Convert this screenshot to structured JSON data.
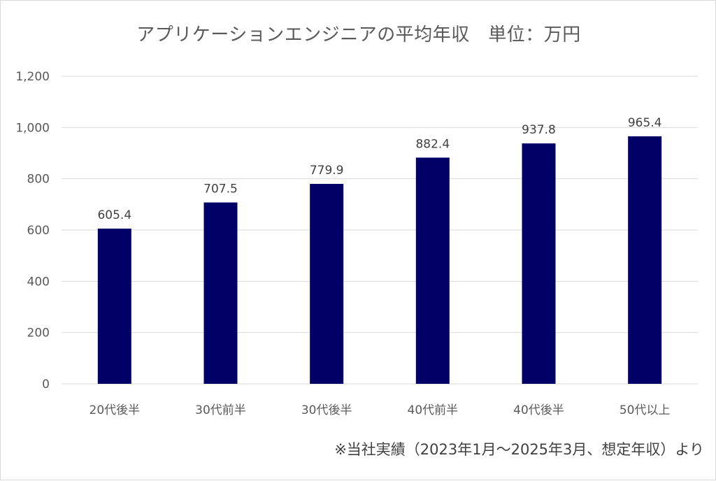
{
  "source_note": "※当社実績（2023年1月～2025年3月、想定年収）より",
  "chart_data": {
    "type": "bar",
    "title": "アプリケーションエンジニアの平均年収　単位：万円",
    "xlabel": "",
    "ylabel": "",
    "categories": [
      "20代後半",
      "30代前半",
      "30代後半",
      "40代前半",
      "40代後半",
      "50代以上"
    ],
    "values": [
      605.4,
      707.5,
      779.9,
      882.4,
      937.8,
      965.4
    ],
    "data_labels": [
      "605.4",
      "707.5",
      "779.9",
      "882.4",
      "937.8",
      "965.4"
    ],
    "ylim": [
      0,
      1200
    ],
    "yticks": [
      0,
      200,
      400,
      600,
      800,
      1000,
      1200
    ],
    "ytick_labels": [
      "0",
      "200",
      "400",
      "600",
      "800",
      "1,000",
      "1,200"
    ],
    "grid": true,
    "legend": "none",
    "bar_color": "#000066",
    "grid_color": "#d9d9d9"
  }
}
